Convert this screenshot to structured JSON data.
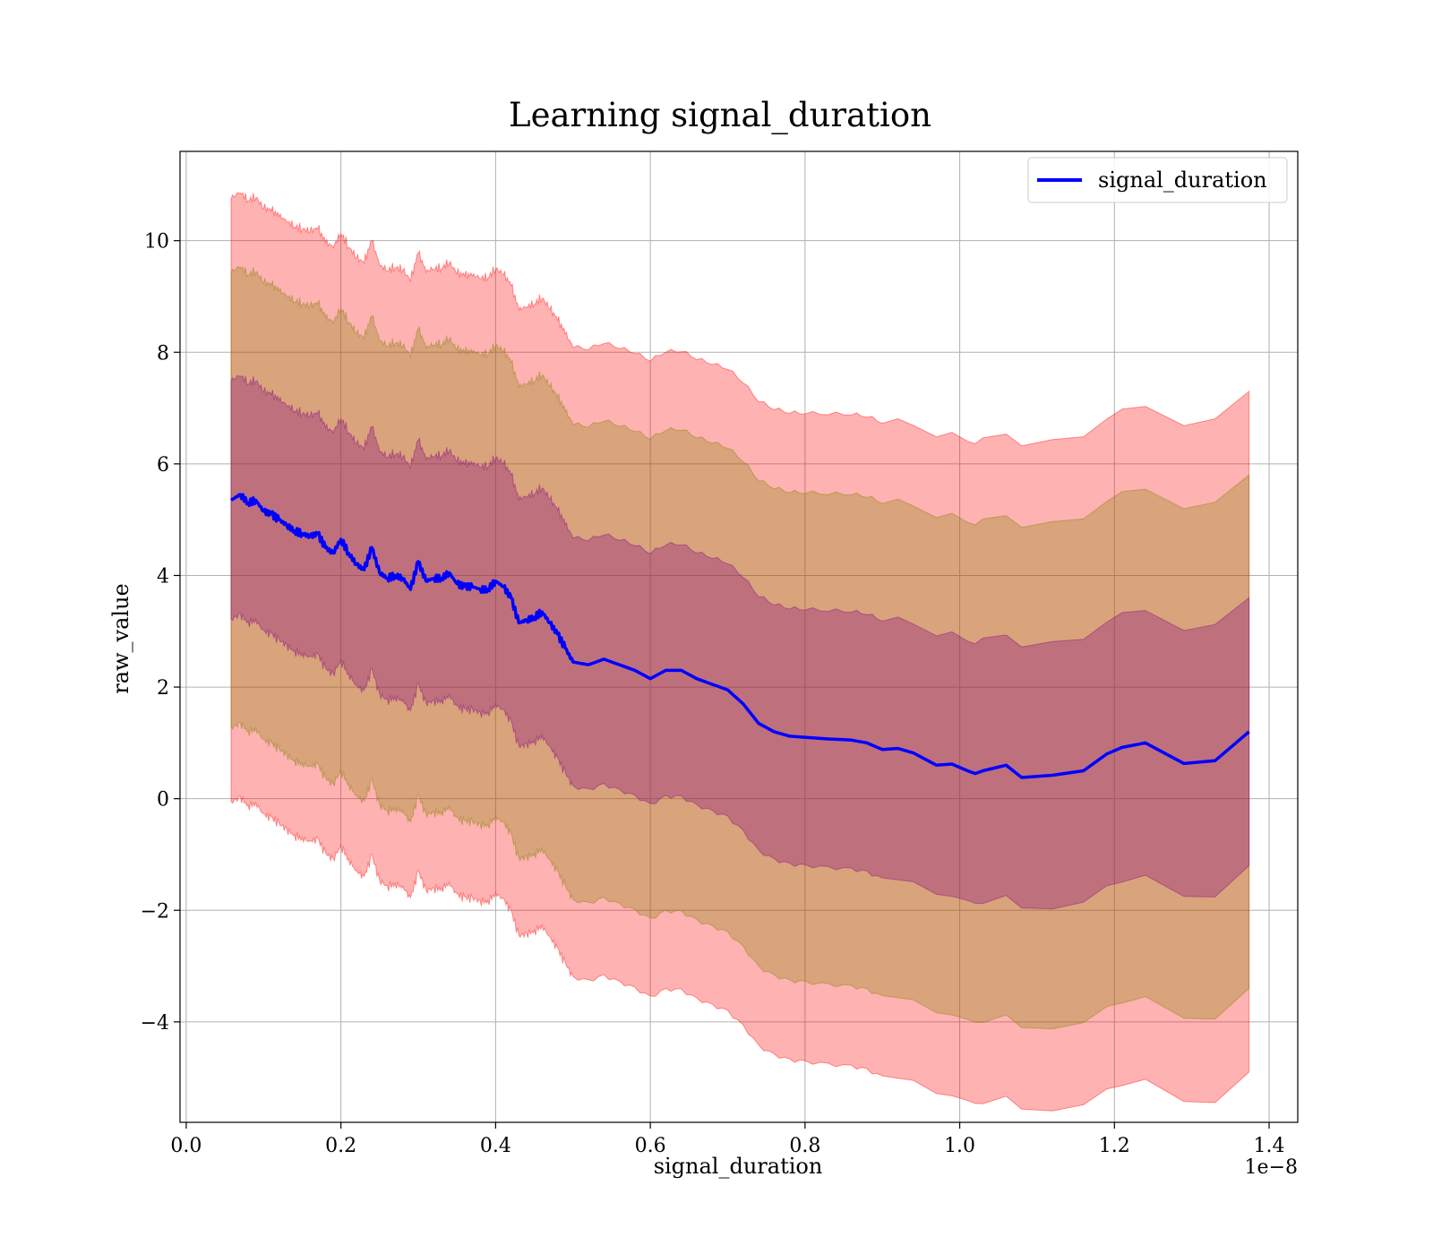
{
  "chart_data": {
    "type": "area",
    "title": "Learning signal_duration",
    "xlabel": "signal_duration",
    "ylabel": "raw_value",
    "x_offset_label": "1e−8",
    "xlim": [
      -0.008,
      1.437
    ],
    "ylim": [
      -5.8,
      11.6
    ],
    "x_ticks": [
      0.0,
      0.2,
      0.4,
      0.6,
      0.8,
      1.0,
      1.2,
      1.4
    ],
    "x_tick_labels": [
      "0.0",
      "0.2",
      "0.4",
      "0.6",
      "0.8",
      "1.0",
      "1.2",
      "1.4"
    ],
    "y_ticks": [
      -4,
      -2,
      0,
      2,
      4,
      6,
      8,
      10
    ],
    "y_tick_labels": [
      "−4",
      "−2",
      "0",
      "2",
      "4",
      "6",
      "8",
      "10"
    ],
    "grid": true,
    "legend_position": "top-right",
    "series": [
      {
        "name": "signal_duration",
        "color": "#0000ff",
        "x": [
          0.058,
          0.07,
          0.08,
          0.09,
          0.1,
          0.11,
          0.12,
          0.13,
          0.14,
          0.15,
          0.16,
          0.17,
          0.18,
          0.19,
          0.2,
          0.21,
          0.22,
          0.23,
          0.24,
          0.25,
          0.26,
          0.27,
          0.28,
          0.29,
          0.3,
          0.31,
          0.32,
          0.33,
          0.34,
          0.35,
          0.36,
          0.37,
          0.38,
          0.39,
          0.4,
          0.41,
          0.42,
          0.43,
          0.44,
          0.45,
          0.46,
          0.47,
          0.48,
          0.49,
          0.5,
          0.52,
          0.54,
          0.56,
          0.58,
          0.6,
          0.62,
          0.64,
          0.66,
          0.68,
          0.7,
          0.72,
          0.74,
          0.76,
          0.78,
          0.8,
          0.83,
          0.86,
          0.88,
          0.9,
          0.92,
          0.94,
          0.97,
          0.99,
          1.01,
          1.02,
          1.03,
          1.06,
          1.08,
          1.12,
          1.16,
          1.19,
          1.21,
          1.24,
          1.29,
          1.33,
          1.374
        ],
        "y": [
          5.35,
          5.45,
          5.3,
          5.35,
          5.15,
          5.1,
          5.0,
          4.9,
          4.8,
          4.75,
          4.7,
          4.75,
          4.5,
          4.4,
          4.65,
          4.4,
          4.2,
          4.1,
          4.5,
          4.05,
          3.95,
          4.0,
          3.95,
          3.75,
          4.25,
          3.9,
          3.95,
          3.95,
          4.05,
          3.85,
          3.8,
          3.8,
          3.75,
          3.75,
          3.9,
          3.8,
          3.6,
          3.15,
          3.2,
          3.25,
          3.35,
          3.15,
          2.95,
          2.7,
          2.45,
          2.4,
          2.5,
          2.4,
          2.3,
          2.15,
          2.3,
          2.3,
          2.15,
          2.05,
          1.95,
          1.7,
          1.35,
          1.2,
          1.12,
          1.1,
          1.07,
          1.05,
          1.0,
          0.88,
          0.9,
          0.82,
          0.6,
          0.62,
          0.5,
          0.45,
          0.5,
          0.6,
          0.38,
          0.42,
          0.5,
          0.8,
          0.92,
          1.0,
          0.63,
          0.68,
          1.2
        ]
      }
    ],
    "bands": [
      {
        "color": "#ff0000",
        "opacity": 0.3,
        "sigma": 3.05,
        "note_width_at_end": 5.4
      },
      {
        "color": "#808000",
        "opacity": 0.3,
        "sigma": 2.3
      },
      {
        "color": "#800080",
        "opacity": 0.3,
        "sigma": 1.2
      }
    ]
  }
}
